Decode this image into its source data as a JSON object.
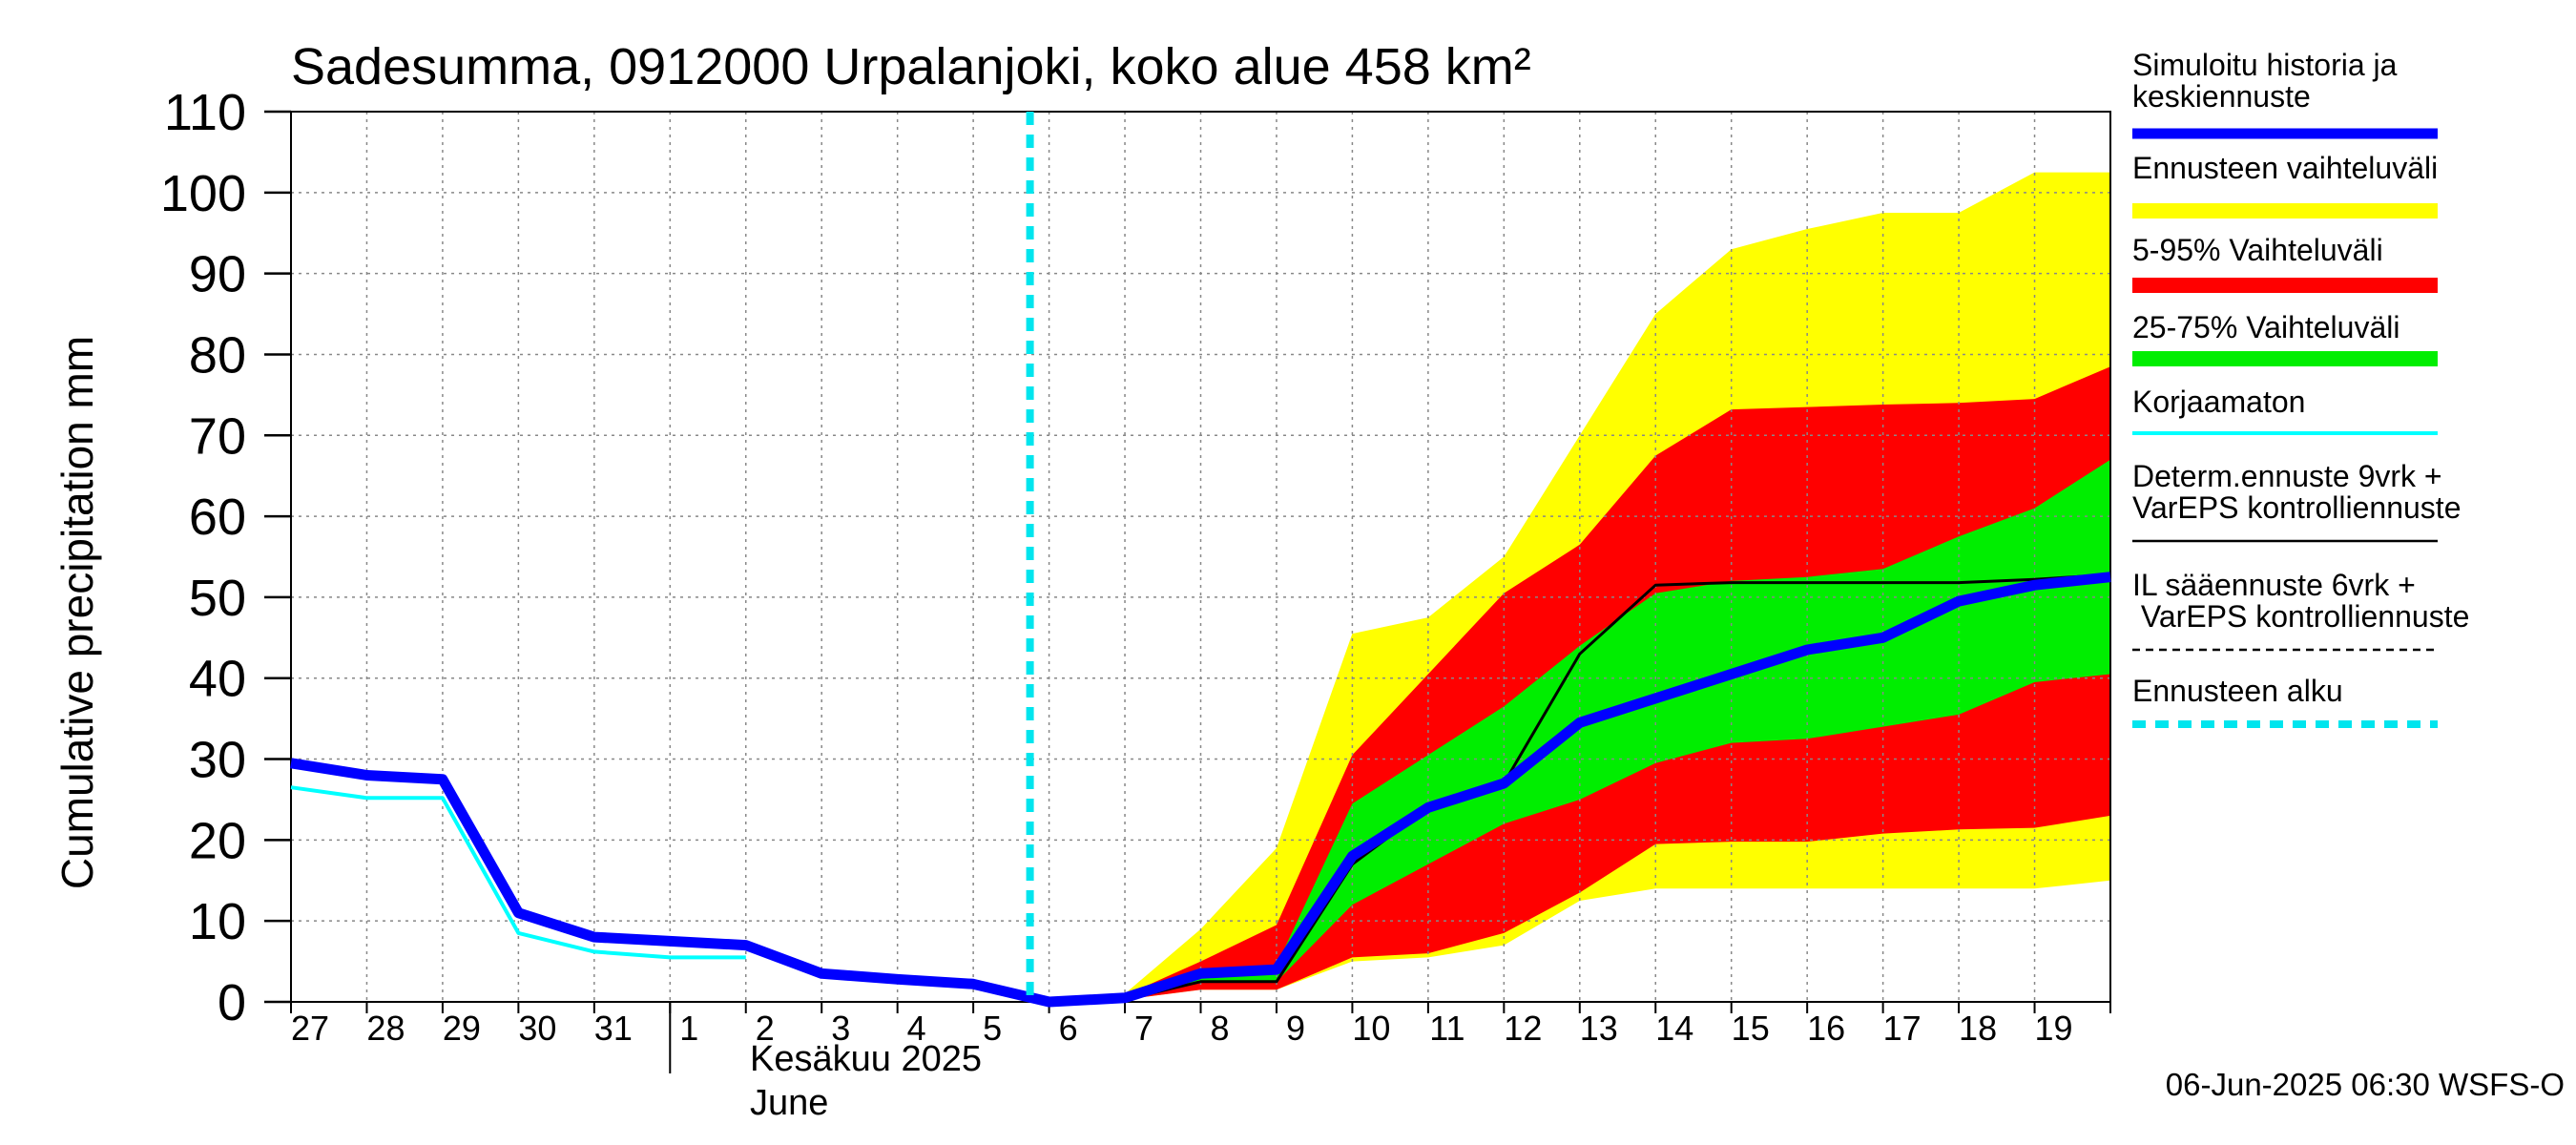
{
  "chart_data": {
    "type": "area",
    "title": "Sadesumma, 0912000 Urpalanjoki, koko alue 458 km²",
    "ylabel": "Cumulative precipitation   mm",
    "ylim": [
      0,
      110
    ],
    "yticks": [
      0,
      10,
      20,
      30,
      40,
      50,
      60,
      70,
      80,
      90,
      100,
      110
    ],
    "x_tick_labels": [
      "27",
      "28",
      "29",
      "30",
      "31",
      "1",
      "2",
      "3",
      "4",
      "5",
      "6",
      "7",
      "8",
      "9",
      "10",
      "11",
      "12",
      "13",
      "14",
      "15",
      "16",
      "17",
      "18",
      "19"
    ],
    "month_label_fi": "Kesäkuu  2025",
    "month_label_en": "June",
    "forecast_start_index": 10,
    "grid": true,
    "legend_position": "right",
    "colors": {
      "history": "#0000ff",
      "range_full": "#ffff00",
      "range_5_95": "#ff0000",
      "range_25_75": "#00ee00",
      "uncorrected": "#00ffff",
      "deterministic": "#000000",
      "forecast_start": "#00e5ee"
    },
    "series": [
      {
        "name": "Simuloitu historia ja keskiennuste",
        "x": [
          0,
          1,
          2,
          3,
          4,
          5,
          6,
          7,
          8,
          9,
          10,
          11,
          12,
          13,
          14,
          15,
          16,
          17,
          18,
          19,
          20,
          21,
          22,
          23,
          24
        ],
        "values": [
          29.5,
          28,
          27.5,
          11,
          8,
          7.5,
          7,
          3.5,
          2.8,
          2.2,
          0,
          0.5,
          3.5,
          4,
          18,
          24,
          27,
          34.5,
          37.5,
          40.5,
          43.5,
          45,
          49.5,
          51.5,
          52.5
        ]
      },
      {
        "name": "Korjaamaton",
        "x": [
          0,
          1,
          2,
          3,
          4,
          5,
          6
        ],
        "values": [
          26.5,
          25.2,
          25.2,
          8.5,
          6.2,
          5.5,
          5.5
        ]
      },
      {
        "name": "Determ.ennuste 9vrk + VarEPS kontrolliennuste",
        "x": [
          10,
          11,
          12,
          13,
          14,
          15,
          16,
          17,
          18,
          19,
          20,
          21,
          22,
          23,
          24
        ],
        "values": [
          0,
          0.3,
          2.5,
          2.5,
          17,
          24,
          27,
          43,
          51.5,
          51.8,
          51.8,
          51.8,
          51.8,
          52.2,
          52.8
        ]
      },
      {
        "name": "Ennusteen vaihteluväli",
        "x": [
          10,
          11,
          12,
          13,
          14,
          15,
          16,
          17,
          18,
          19,
          20,
          21,
          22,
          23,
          24
        ],
        "low": [
          0,
          0.3,
          1.5,
          1.5,
          5,
          5.5,
          7,
          12.5,
          14,
          14,
          14,
          14,
          14,
          14,
          15
        ],
        "high": [
          0,
          1,
          9,
          19,
          45.5,
          47.5,
          55,
          70,
          85,
          93,
          95.5,
          97.5,
          97.5,
          102.5,
          102.5
        ]
      },
      {
        "name": "5-95% Vaihteluväli",
        "x": [
          10,
          11,
          12,
          13,
          14,
          15,
          16,
          17,
          18,
          19,
          20,
          21,
          22,
          23,
          24
        ],
        "low": [
          0,
          0.3,
          1.5,
          1.5,
          5.5,
          6,
          8.5,
          13.5,
          19.5,
          19.8,
          19.8,
          20.8,
          21.3,
          21.5,
          23
        ],
        "high": [
          0,
          0.8,
          5,
          9.5,
          30.5,
          40.5,
          50.5,
          56.5,
          67.5,
          73.2,
          73.5,
          73.8,
          74,
          74.5,
          78.5
        ]
      },
      {
        "name": "25-75% Vaihteluväli",
        "x": [
          10,
          11,
          12,
          13,
          14,
          15,
          16,
          17,
          18,
          19,
          20,
          21,
          22,
          23,
          24
        ],
        "low": [
          0,
          0.4,
          2.5,
          2.5,
          12,
          17,
          22,
          25,
          29.5,
          32,
          32.5,
          34,
          35.5,
          39.5,
          40.5
        ],
        "high": [
          0,
          0.6,
          4,
          4.5,
          24.5,
          30.5,
          36.5,
          44,
          50.5,
          52,
          52.5,
          53.5,
          57.5,
          61,
          67
        ]
      }
    ],
    "legend": [
      {
        "label": "Simuloitu historia ja keskiennuste",
        "style": "thick-blue"
      },
      {
        "label": "Ennusteen vaihteluväli",
        "style": "yellow-band"
      },
      {
        "label": "5-95% Vaihteluväli",
        "style": "red-band"
      },
      {
        "label": "25-75% Vaihteluväli",
        "style": "green-band"
      },
      {
        "label": "Korjaamaton",
        "style": "cyan-line"
      },
      {
        "label": "Determ.ennuste 9vrk + VarEPS kontrolliennuste",
        "style": "black-line"
      },
      {
        "label": "IL sääennuste 6vrk + VarEPS kontrolliennuste",
        "style": "black-dashed"
      },
      {
        "label": "Ennusteen alku",
        "style": "cyan-dashed"
      }
    ]
  },
  "footer": {
    "timestamp": "06-Jun-2025 06:30 WSFS-O"
  }
}
